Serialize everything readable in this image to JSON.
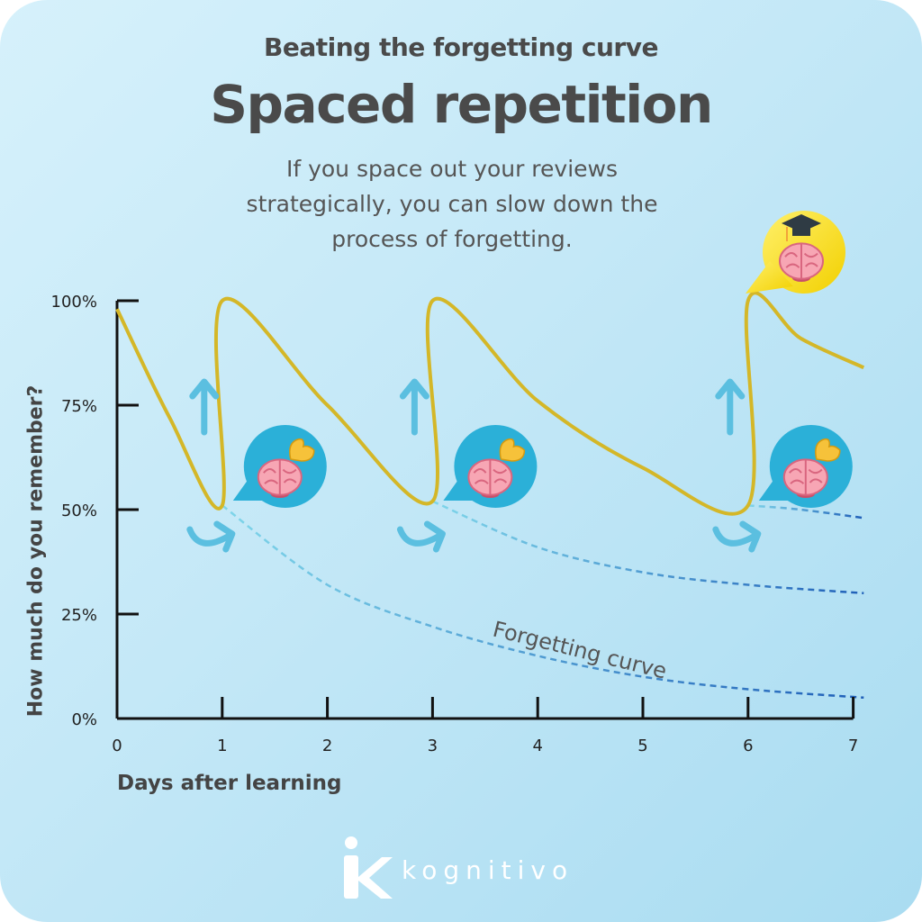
{
  "header": {
    "kicker": "Beating the forgetting curve",
    "title": "Spaced repetition",
    "subtitle": "If you space out your reviews strategically, you can slow down the process of forgetting."
  },
  "brand": {
    "name": "kognitivo",
    "logo_letter": "K"
  },
  "chart_data": {
    "type": "line",
    "xlabel": "Days after learning",
    "ylabel": "How much do you remember?",
    "xlim": [
      0,
      7
    ],
    "ylim": [
      0,
      100
    ],
    "x_ticks": [
      "0",
      "1",
      "2",
      "3",
      "4",
      "5",
      "6",
      "7"
    ],
    "y_ticks": [
      "0%",
      "25%",
      "50%",
      "75%",
      "100%"
    ],
    "review_days": [
      1,
      3,
      6
    ],
    "annotation": "Forgetting curve",
    "colors": {
      "retention": "#d4b728",
      "forgetting": "#3a7fcf",
      "arrow": "#5bbfe0",
      "bubble": "#2bb0d8",
      "axis": "#111111"
    },
    "icons": [
      "up-arrow-icon",
      "curved-arrow-icon",
      "brain-muscle-bubble-icon",
      "brain-graduate-bubble-icon"
    ],
    "series": [
      {
        "style": "solid",
        "x": [
          0,
          0.5,
          1,
          1,
          2,
          3,
          3,
          4,
          5,
          6,
          6,
          6.5,
          7.1
        ],
        "y": [
          98,
          72,
          51,
          100,
          75,
          52,
          100,
          76,
          60,
          51,
          100,
          91,
          84
        ]
      },
      {
        "style": "dashed",
        "x": [
          1,
          2,
          3,
          4,
          5,
          6,
          7.1
        ],
        "y": [
          51,
          32,
          22,
          15,
          10,
          7,
          5
        ]
      },
      {
        "style": "dashed",
        "x": [
          3,
          4,
          5,
          6,
          7.1
        ],
        "y": [
          52,
          41,
          35,
          32,
          30
        ]
      },
      {
        "style": "dashed",
        "x": [
          6,
          6.5,
          7.1
        ],
        "y": [
          51,
          50,
          48
        ]
      }
    ]
  }
}
